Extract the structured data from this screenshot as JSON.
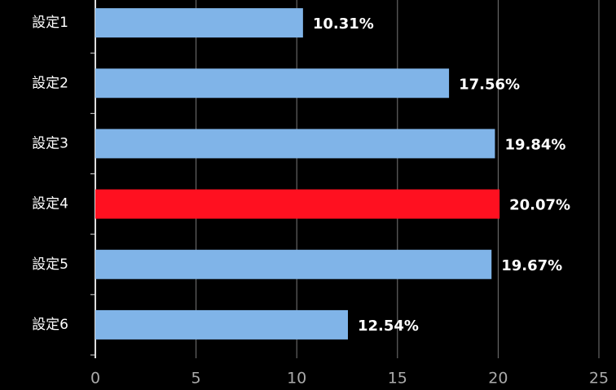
{
  "chart_data": {
    "type": "bar",
    "orientation": "horizontal",
    "categories": [
      "設定1",
      "設定2",
      "設定3",
      "設定4",
      "設定5",
      "設定6"
    ],
    "values": [
      10.31,
      17.56,
      19.84,
      20.07,
      19.67,
      12.54
    ],
    "value_labels": [
      "10.31%",
      "17.56%",
      "19.84%",
      "20.07%",
      "19.67%",
      "12.54%"
    ],
    "colors": [
      "#80b4e8",
      "#80b4e8",
      "#80b4e8",
      "#ff1020",
      "#80b4e8",
      "#80b4e8"
    ],
    "xlim": [
      0,
      25
    ],
    "xticks": [
      0,
      5,
      10,
      15,
      20,
      25
    ],
    "grid": true
  }
}
